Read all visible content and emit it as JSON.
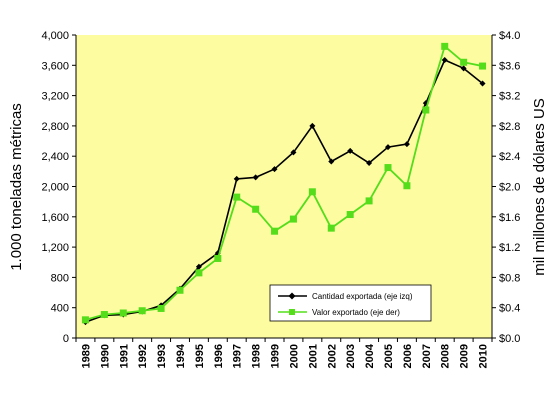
{
  "chart_data": {
    "type": "line",
    "title": "",
    "ylabel_left": "1.000 toneladas métricas",
    "ylabel_right": "mil millones de dólares US",
    "ylim_left": [
      0,
      4000
    ],
    "ylim_right": [
      0,
      4.0
    ],
    "yticks_left": [
      "0",
      "400",
      "800",
      "1,200",
      "1,600",
      "2,000",
      "2,400",
      "2,800",
      "3,200",
      "3,600",
      "4,000"
    ],
    "yticks_right": [
      "$0.0",
      "$0.4",
      "$0.8",
      "$1.2",
      "$1.6",
      "$2.0",
      "$2.4",
      "$2.8",
      "$3.2",
      "$3.6",
      "$4.0"
    ],
    "x": [
      "1989",
      "1990",
      "1991",
      "1992",
      "1993",
      "1994",
      "1995",
      "1996",
      "1997",
      "1998",
      "1999",
      "2000",
      "2001",
      "2002",
      "2003",
      "2004",
      "2005",
      "2006",
      "2007",
      "2008",
      "2009",
      "2010"
    ],
    "series": [
      {
        "name": "Cantidad exportada (eje izq)",
        "axis": "left",
        "color": "#000000",
        "marker": "diamond",
        "values": [
          210,
          300,
          310,
          350,
          430,
          650,
          940,
          1120,
          2100,
          2120,
          2230,
          2450,
          2800,
          2330,
          2470,
          2310,
          2520,
          2560,
          3100,
          3670,
          3560,
          3360
        ]
      },
      {
        "name": "Valor exportado (eje der)",
        "axis": "right",
        "color": "#55dd1c",
        "marker": "square",
        "values": [
          0.24,
          0.31,
          0.33,
          0.36,
          0.39,
          0.63,
          0.86,
          1.05,
          1.86,
          1.7,
          1.41,
          1.57,
          1.93,
          1.45,
          1.63,
          1.81,
          2.25,
          2.01,
          3.01,
          3.85,
          3.64,
          3.59
        ]
      }
    ],
    "legend_position": "bottom-right",
    "grid": false,
    "plot_background": "#fdfca0"
  }
}
